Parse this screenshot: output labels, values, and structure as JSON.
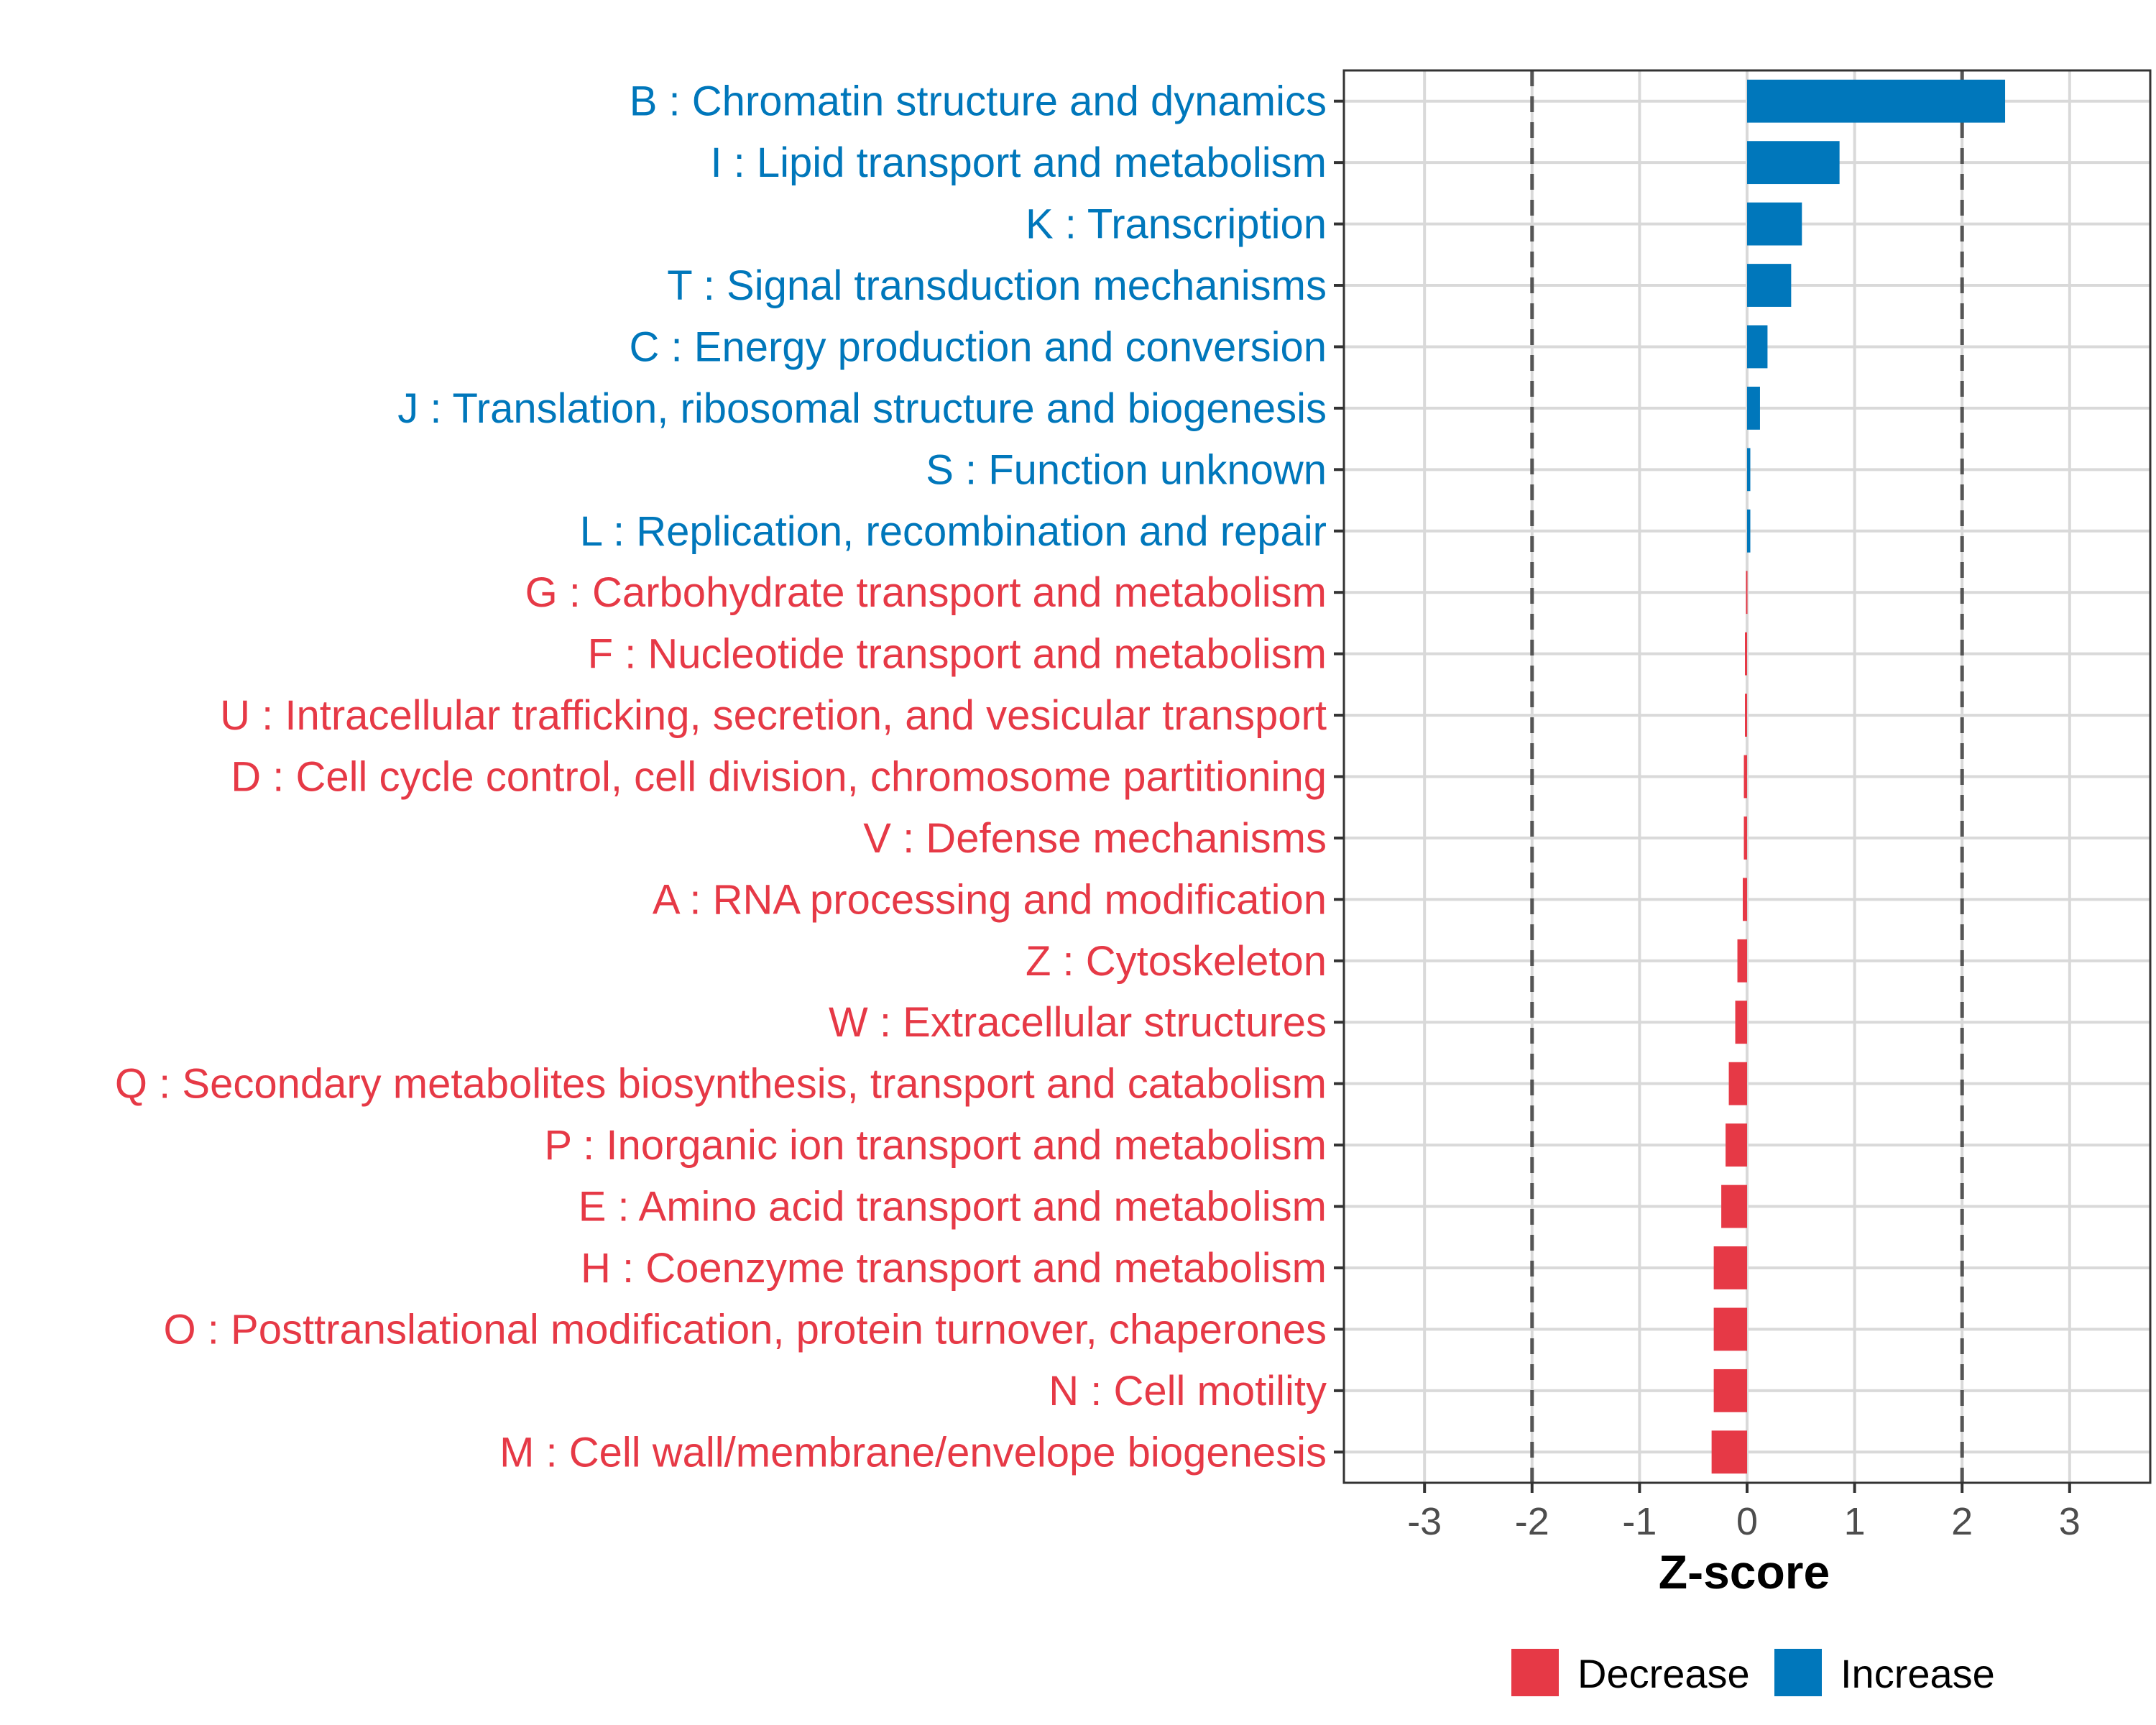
{
  "chart_data": {
    "type": "bar",
    "orientation": "horizontal",
    "title": "",
    "xlabel": "Z-score",
    "ylabel": "",
    "xlim": [
      -3.75,
      3.75
    ],
    "xticks": [
      -3,
      -2,
      -1,
      0,
      1,
      2,
      3
    ],
    "xtick_labels": [
      "-3",
      "-2",
      "-1",
      "0",
      "1",
      "2",
      "3"
    ],
    "reference_lines": [
      -2,
      2
    ],
    "grid": true,
    "categories": [
      "B : Chromatin structure and dynamics",
      "I : Lipid transport and metabolism",
      "K : Transcription",
      "T : Signal transduction mechanisms",
      "C : Energy production and conversion",
      "J : Translation, ribosomal structure and biogenesis",
      "S : Function unknown",
      "L : Replication, recombination and repair",
      "G : Carbohydrate transport and metabolism",
      "F : Nucleotide transport and metabolism",
      "U : Intracellular trafficking, secretion, and vesicular transport",
      "D : Cell cycle control, cell division, chromosome partitioning",
      "V : Defense mechanisms",
      "A : RNA processing and modification",
      "Z : Cytoskeleton",
      "W : Extracellular structures",
      "Q : Secondary metabolites biosynthesis, transport and catabolism",
      "P : Inorganic ion transport and metabolism",
      "E : Amino acid transport and metabolism",
      "H : Coenzyme transport and metabolism",
      "O : Posttranslational modification, protein turnover, chaperones",
      "N : Cell motility",
      "M : Cell wall/membrane/envelope biogenesis"
    ],
    "values": [
      2.4,
      0.86,
      0.51,
      0.41,
      0.19,
      0.12,
      0.03,
      0.03,
      -0.01,
      -0.02,
      -0.02,
      -0.03,
      -0.03,
      -0.04,
      -0.09,
      -0.11,
      -0.17,
      -0.2,
      -0.24,
      -0.31,
      -0.31,
      -0.31,
      -0.33
    ],
    "groups": [
      "Increase",
      "Increase",
      "Increase",
      "Increase",
      "Increase",
      "Increase",
      "Increase",
      "Increase",
      "Decrease",
      "Decrease",
      "Decrease",
      "Decrease",
      "Decrease",
      "Decrease",
      "Decrease",
      "Decrease",
      "Decrease",
      "Decrease",
      "Decrease",
      "Decrease",
      "Decrease",
      "Decrease",
      "Decrease"
    ],
    "legend": {
      "position": "bottom",
      "items": [
        {
          "label": "Decrease",
          "color": "#E63946"
        },
        {
          "label": "Increase",
          "color": "#0077BB"
        }
      ]
    },
    "colors": {
      "Decrease": "#E63946",
      "Increase": "#0077BB"
    }
  }
}
